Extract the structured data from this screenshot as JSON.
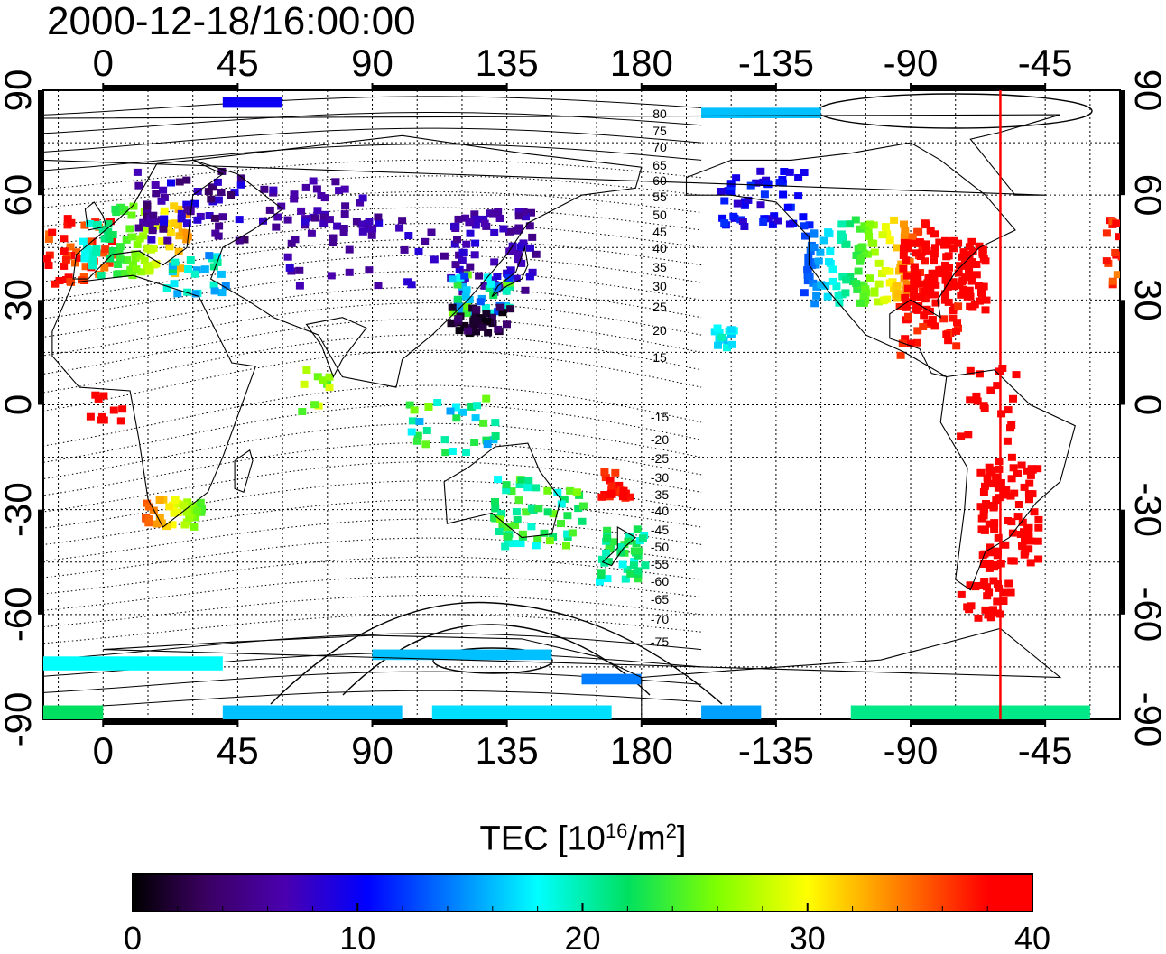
{
  "title": "2000-12-18/16:00:00",
  "map": {
    "top_lon_labels": [
      "0",
      "45",
      "90",
      "135",
      "180",
      "-135",
      "-90",
      "-45"
    ],
    "bottom_lon_labels": [
      "0",
      "45",
      "90",
      "135",
      "180",
      "-135",
      "-90",
      "-45"
    ],
    "lat_labels": [
      "90",
      "60",
      "30",
      "0",
      "-30",
      "-60",
      "-90"
    ],
    "north_contour_labels": [
      "80",
      "75",
      "70",
      "65",
      "60",
      "55",
      "50",
      "45",
      "40",
      "35",
      "30",
      "25",
      "20",
      "15"
    ],
    "south_contour_labels": [
      "-15",
      "-20",
      "-25",
      "-30",
      "-35",
      "-40",
      "-45",
      "-50",
      "-55",
      "-60",
      "-65",
      "-70",
      "-75"
    ],
    "terminator_lon": -60,
    "colors": {
      "terminator": "#ff0000",
      "coast": "#000000"
    }
  },
  "colorbar": {
    "label_prefix": "TEC  [10",
    "label_exp1": "16",
    "label_mid": "/m",
    "label_exp2": "2",
    "label_suffix": "]",
    "ticks": [
      "0",
      "10",
      "20",
      "30",
      "40"
    ],
    "min": 0,
    "max": 40
  }
}
